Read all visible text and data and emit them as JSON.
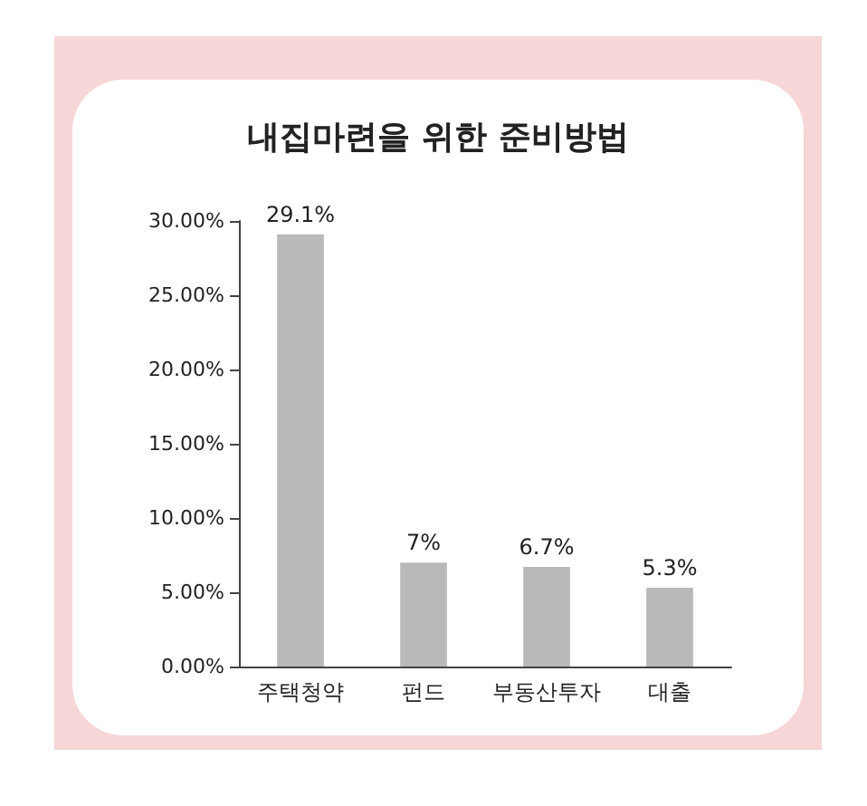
{
  "chart_data": {
    "type": "bar",
    "title": "내집마련을 위한 준비방법",
    "categories": [
      "주택청약",
      "펀드",
      "부동산투자",
      "대출"
    ],
    "values": [
      29.1,
      7,
      6.7,
      5.3
    ],
    "value_labels": [
      "29.1%",
      "7%",
      "6.7%",
      "5.3%"
    ],
    "color": "#b9b9b9",
    "ylim": [
      0,
      30
    ],
    "yticks": [
      {
        "value": 0,
        "label": "0.00%"
      },
      {
        "value": 5,
        "label": "5.00%"
      },
      {
        "value": 10,
        "label": "10.00%"
      },
      {
        "value": 15,
        "label": "15.00%"
      },
      {
        "value": 20,
        "label": "20.00%"
      },
      {
        "value": 25,
        "label": "25.00%"
      },
      {
        "value": 30,
        "label": "30.00%"
      }
    ],
    "grid": false
  }
}
